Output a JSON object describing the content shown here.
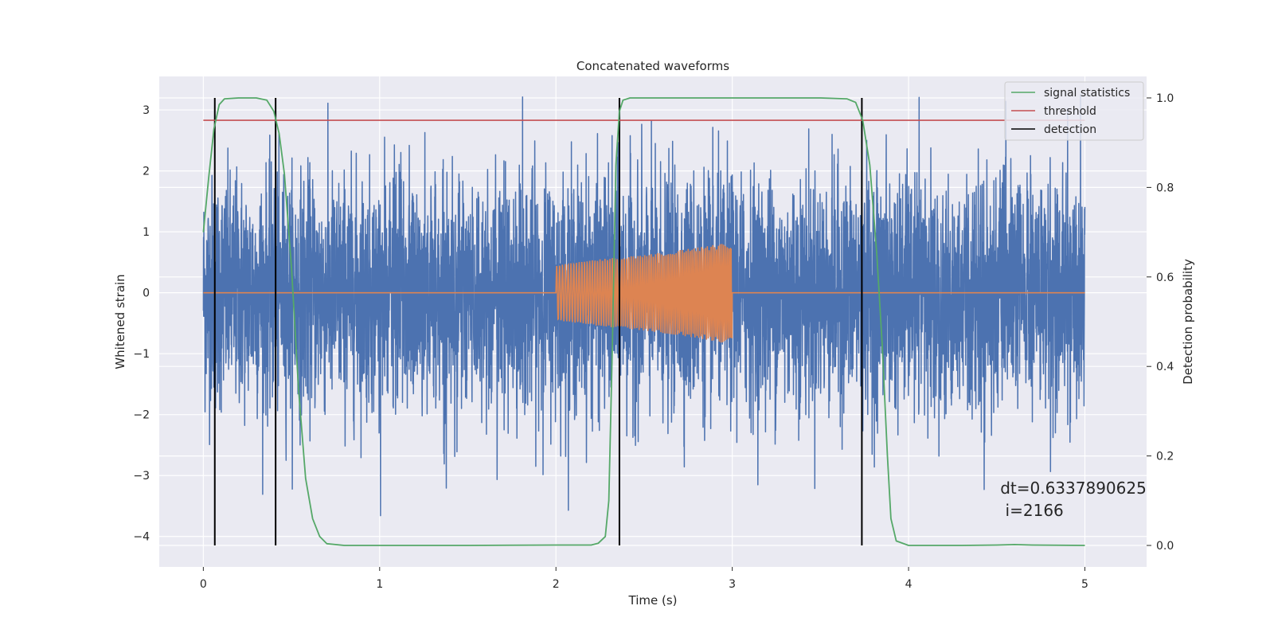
{
  "chart_data": {
    "type": "line",
    "title": "Concatenated waveforms",
    "xlabel": "Time (s)",
    "ylabel": "Whitened strain",
    "y2label": "Detection probability",
    "xlim": [
      -0.25,
      5.35
    ],
    "ylim": [
      -4.5,
      3.55
    ],
    "y2lim": [
      -0.048,
      1.048
    ],
    "x_ticks": [
      0,
      1,
      2,
      3,
      4,
      5
    ],
    "y_ticks": [
      -4,
      -3,
      -2,
      -1,
      0,
      1,
      2,
      3
    ],
    "y2_ticks": [
      0.0,
      0.2,
      0.4,
      0.6,
      0.8,
      1.0
    ],
    "x_tick_labels": [
      "0",
      "1",
      "2",
      "3",
      "4",
      "5"
    ],
    "y_tick_labels": [
      "−4",
      "−3",
      "−2",
      "−1",
      "0",
      "1",
      "2",
      "3"
    ],
    "y2_tick_labels": [
      "0.0",
      "0.2",
      "0.4",
      "0.6",
      "0.8",
      "1.0"
    ],
    "grid": true,
    "legend_position": "top-right",
    "colors": {
      "background": "#eaeaf2",
      "grid": "#ffffff",
      "strain": "#4c72b0",
      "template": "#dd8452",
      "signal_statistics": "#55a868",
      "threshold": "#c44e52",
      "detection": "#000000"
    },
    "series": [
      {
        "name": "",
        "axis": "left",
        "description_role": "whitened strain noise",
        "x_range": [
          0,
          5
        ],
        "amplitude_range": [
          -3.7,
          3.25
        ]
      },
      {
        "name": "",
        "axis": "left",
        "description_role": "injected waveform",
        "x": [
          0,
          2,
          2.0001,
          2.25,
          2.5,
          2.75,
          3,
          3.0001,
          5
        ],
        "envelope_upper": [
          0,
          0,
          0.45,
          0.55,
          0.62,
          0.72,
          0.83,
          0,
          0
        ],
        "envelope_lower": [
          0,
          0,
          -0.45,
          -0.55,
          -0.62,
          -0.72,
          -0.85,
          0,
          0
        ]
      },
      {
        "name": "signal statistics",
        "axis": "right",
        "x": [
          0,
          0.03,
          0.06,
          0.09,
          0.12,
          0.2,
          0.3,
          0.36,
          0.4,
          0.43,
          0.46,
          0.5,
          0.54,
          0.58,
          0.62,
          0.66,
          0.7,
          0.8,
          1.0,
          1.5,
          2.0,
          2.2,
          2.24,
          2.28,
          2.3,
          2.32,
          2.34,
          2.36,
          2.38,
          2.42,
          2.5,
          3.0,
          3.5,
          3.65,
          3.7,
          3.74,
          3.78,
          3.82,
          3.85,
          3.88,
          3.9,
          3.93,
          4.0,
          4.3,
          4.5,
          4.6,
          4.7,
          5.0
        ],
        "values": [
          0.7,
          0.82,
          0.93,
          0.985,
          0.998,
          1.0,
          1.0,
          0.995,
          0.97,
          0.92,
          0.83,
          0.62,
          0.35,
          0.15,
          0.06,
          0.02,
          0.004,
          0.0,
          0.0,
          0.0,
          0.001,
          0.001,
          0.005,
          0.02,
          0.1,
          0.45,
          0.85,
          0.97,
          0.995,
          1.0,
          1.0,
          1.0,
          1.0,
          0.998,
          0.99,
          0.95,
          0.85,
          0.65,
          0.45,
          0.2,
          0.06,
          0.01,
          0.0,
          0.0,
          0.001,
          0.002,
          0.001,
          0.0
        ]
      },
      {
        "name": "threshold",
        "axis": "right",
        "x": [
          0,
          5
        ],
        "values": [
          0.95,
          0.95
        ]
      },
      {
        "name": "detection",
        "axis": "right",
        "type": "vlines",
        "x": [
          0.065,
          0.41,
          2.36,
          3.735
        ],
        "ymin": 0.0,
        "ymax": 1.0
      }
    ],
    "annotation": {
      "line1": "dt=0.6337890625",
      "line2": " i=2166",
      "x": 4.52,
      "y": -3.3
    }
  }
}
